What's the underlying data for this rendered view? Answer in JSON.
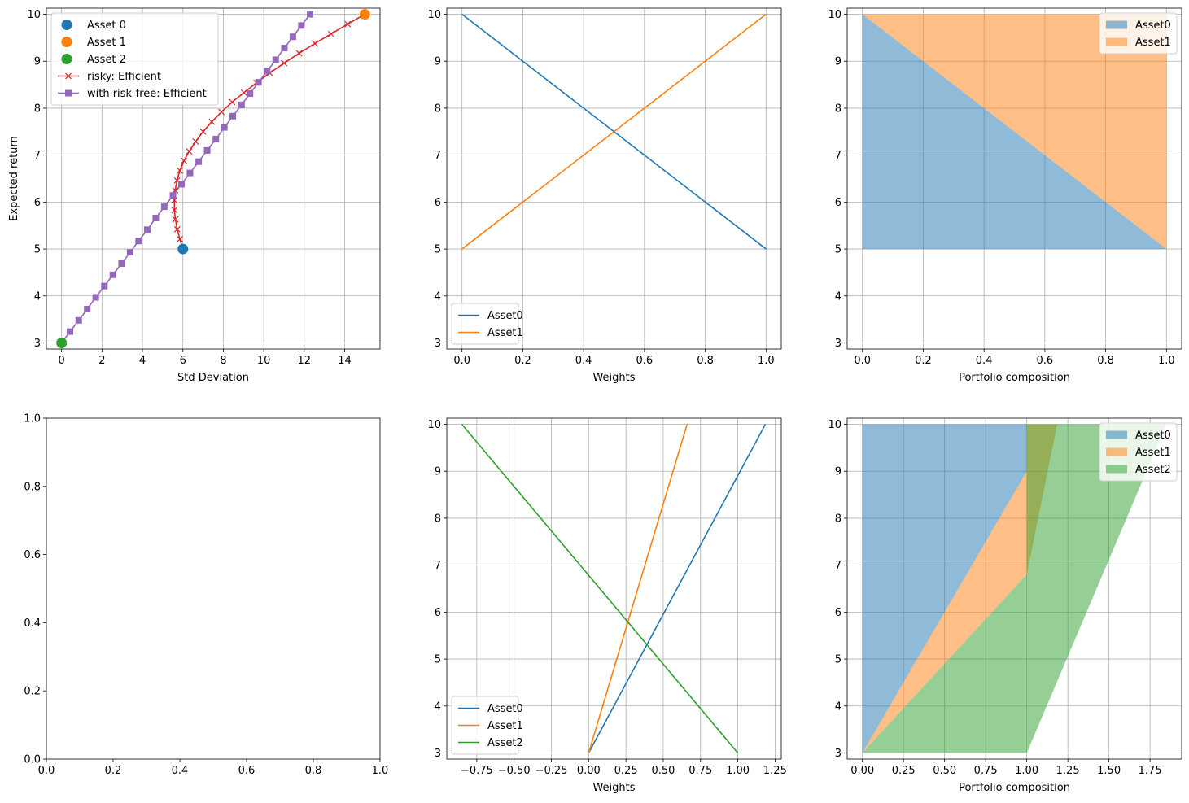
{
  "chart_data": [
    {
      "id": "frontier",
      "type": "line",
      "xlabel": "Std Deviation",
      "ylabel": "Expected return",
      "xlim": [
        -0.75,
        15.75
      ],
      "ylim": [
        2.87,
        10.13
      ],
      "xticks": [
        0,
        2,
        4,
        6,
        8,
        10,
        12,
        14
      ],
      "yticks": [
        3,
        4,
        5,
        6,
        7,
        8,
        9,
        10
      ],
      "grid": true,
      "legend": "upper-left",
      "points": [
        {
          "name": "Asset 0",
          "x": 6.0,
          "y": 5.0,
          "color": "#1f77b4"
        },
        {
          "name": "Asset 1",
          "x": 15.0,
          "y": 10.0,
          "color": "#ff7f0e"
        },
        {
          "name": "Asset 2",
          "x": 0.0,
          "y": 3.0,
          "color": "#2ca02c"
        }
      ],
      "series": [
        {
          "name": "risky: Efficient",
          "color": "#d62728",
          "marker": "x",
          "x": [
            6.0,
            5.85,
            5.72,
            5.63,
            5.58,
            5.58,
            5.62,
            5.71,
            5.85,
            6.05,
            6.31,
            6.63,
            7.0,
            7.43,
            7.91,
            8.44,
            9.02,
            9.64,
            10.3,
            11.01,
            11.75,
            12.53,
            13.33,
            14.15,
            15.0
          ],
          "y": [
            5.0,
            5.21,
            5.42,
            5.63,
            5.83,
            6.04,
            6.25,
            6.46,
            6.67,
            6.88,
            7.08,
            7.29,
            7.5,
            7.71,
            7.92,
            8.13,
            8.33,
            8.54,
            8.75,
            8.96,
            9.17,
            9.38,
            9.58,
            9.79,
            10.0
          ]
        },
        {
          "name": "with risk-free: Efficient",
          "color": "#9467bd",
          "marker": "s",
          "x": [
            0.0,
            0.42,
            0.85,
            1.27,
            1.69,
            2.12,
            2.54,
            2.97,
            3.39,
            3.81,
            4.24,
            4.66,
            5.08,
            5.51,
            5.93,
            6.35,
            6.78,
            7.2,
            7.63,
            8.05,
            8.47,
            8.9,
            9.32,
            9.74,
            10.17,
            10.59,
            11.02,
            11.44,
            11.86,
            12.29
          ],
          "y": [
            3.0,
            3.24,
            3.48,
            3.72,
            3.97,
            4.21,
            4.45,
            4.69,
            4.93,
            5.17,
            5.41,
            5.66,
            5.9,
            6.14,
            6.38,
            6.62,
            6.86,
            7.1,
            7.34,
            7.59,
            7.83,
            8.07,
            8.31,
            8.55,
            8.79,
            9.03,
            9.28,
            9.52,
            9.76,
            10.0
          ]
        }
      ]
    },
    {
      "id": "weights2",
      "type": "line",
      "xlabel": "Weights",
      "ylabel": "",
      "xlim": [
        -0.05,
        1.05
      ],
      "ylim": [
        2.87,
        10.13
      ],
      "xticks": [
        "0.0",
        "0.2",
        "0.4",
        "0.6",
        "0.8",
        "1.0"
      ],
      "yticks": [
        3,
        4,
        5,
        6,
        7,
        8,
        9,
        10
      ],
      "grid": true,
      "legend": "lower-left",
      "series": [
        {
          "name": "Asset0",
          "color": "#1f77b4",
          "x": [
            0,
            1
          ],
          "y": [
            10,
            5
          ]
        },
        {
          "name": "Asset1",
          "color": "#ff7f0e",
          "x": [
            0,
            1
          ],
          "y": [
            5,
            10
          ]
        }
      ]
    },
    {
      "id": "comp2",
      "type": "area",
      "xlabel": "Portfolio composition",
      "ylabel": "",
      "xlim": [
        -0.05,
        1.05
      ],
      "ylim": [
        2.87,
        10.13
      ],
      "xticks": [
        "0.0",
        "0.2",
        "0.4",
        "0.6",
        "0.8",
        "1.0"
      ],
      "yticks": [
        3,
        4,
        5,
        6,
        7,
        8,
        9,
        10
      ],
      "grid": true,
      "legend": "upper-right",
      "series": [
        {
          "name": "Asset0",
          "color": "#1f77b4",
          "polygon": [
            [
              0,
              5
            ],
            [
              0,
              10
            ],
            [
              1,
              5
            ]
          ]
        },
        {
          "name": "Asset1",
          "color": "#ff7f0e",
          "polygon": [
            [
              0,
              10
            ],
            [
              1,
              10
            ],
            [
              1,
              5
            ]
          ]
        }
      ]
    },
    {
      "id": "empty",
      "type": "line",
      "xlabel": "",
      "ylabel": "",
      "xlim": [
        0,
        1
      ],
      "ylim": [
        0,
        1
      ],
      "xticks": [
        "0.0",
        "0.2",
        "0.4",
        "0.6",
        "0.8",
        "1.0"
      ],
      "yticks": [
        "0.0",
        "0.2",
        "0.4",
        "0.6",
        "0.8",
        "1.0"
      ],
      "grid": false,
      "series": []
    },
    {
      "id": "weights3",
      "type": "line",
      "xlabel": "Weights",
      "ylabel": "",
      "xlim": [
        -0.9512,
        1.2915
      ],
      "ylim": [
        2.87,
        10.13
      ],
      "xticks": [
        "−0.75",
        "−0.50",
        "−0.25",
        "0.00",
        "0.25",
        "0.50",
        "0.75",
        "1.00",
        "1.25"
      ],
      "yticks": [
        3,
        4,
        5,
        6,
        7,
        8,
        9,
        10
      ],
      "grid": true,
      "legend": "lower-left",
      "series": [
        {
          "name": "Asset0",
          "color": "#1f77b4",
          "x": [
            0,
            1.185
          ],
          "y": [
            3,
            10
          ]
        },
        {
          "name": "Asset1",
          "color": "#ff7f0e",
          "x": [
            0,
            0.66
          ],
          "y": [
            3,
            10
          ]
        },
        {
          "name": "Asset2",
          "color": "#2ca02c",
          "x": [
            1,
            -0.85
          ],
          "y": [
            3,
            10
          ]
        }
      ]
    },
    {
      "id": "comp3",
      "type": "area",
      "xlabel": "Portfolio composition",
      "ylabel": "",
      "xlim": [
        -0.0925,
        1.9425
      ],
      "ylim": [
        2.87,
        10.13
      ],
      "xticks": [
        "0.00",
        "0.25",
        "0.50",
        "0.75",
        "1.00",
        "1.25",
        "1.50",
        "1.75"
      ],
      "yticks": [
        3,
        4,
        5,
        6,
        7,
        8,
        9,
        10
      ],
      "grid": true,
      "legend": "upper-right",
      "series": [
        {
          "name": "Asset0",
          "color": "#1f77b4",
          "polygon": [
            [
              0,
              3
            ],
            [
              0,
              10
            ],
            [
              1.0,
              10
            ],
            [
              1.0,
              9.0
            ]
          ]
        },
        {
          "name": "Asset1",
          "color": "#ff7f0e",
          "polygon": [
            [
              0,
              3
            ],
            [
              1.0,
              9.0
            ],
            [
              1.0,
              10
            ],
            [
              1.185,
              10
            ],
            [
              1.0,
              6.8
            ]
          ]
        },
        {
          "name": "Asset2",
          "color": "#2ca02c",
          "polygon": [
            [
              0,
              3
            ],
            [
              1.0,
              6.8
            ],
            [
              1.0,
              10
            ],
            [
              1.85,
              10
            ],
            [
              1.0,
              3
            ]
          ]
        }
      ]
    }
  ]
}
